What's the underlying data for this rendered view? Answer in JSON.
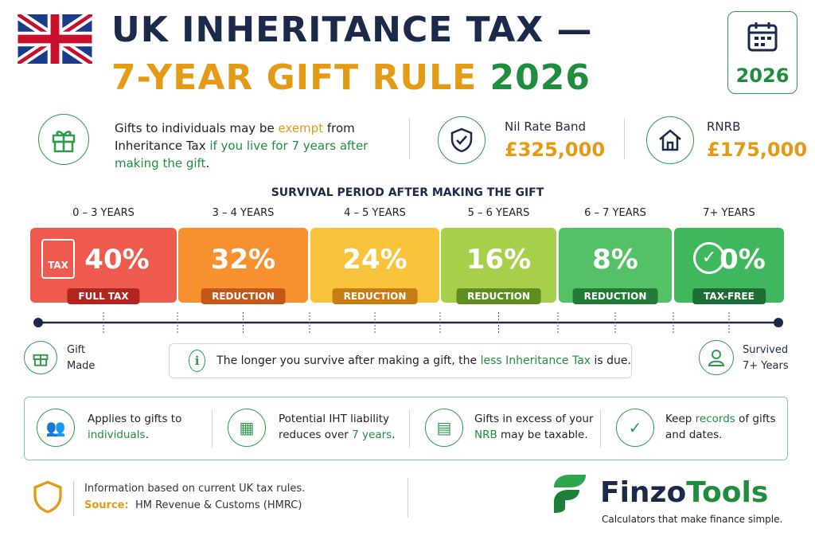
{
  "header": {
    "title_line1": "UK INHERITANCE TAX —",
    "title_line2_part1": "7-YEAR GIFT RULE",
    "title_line2_part2": "2026",
    "badge_year": "2026"
  },
  "intro": {
    "segments": [
      "Gifts to individuals may be ",
      "exempt",
      " from Inheritance Tax ",
      "if you live for 7 years after making the gift",
      "."
    ]
  },
  "nil_rate_band": {
    "label": "Nil Rate Band",
    "value": "£325,000"
  },
  "rnrb": {
    "label": "RNRB",
    "value": "£175,000"
  },
  "timeline": {
    "heading": "SURVIVAL PERIOD AFTER MAKING THE GIFT",
    "icon_text": "TAX",
    "periods": [
      {
        "label": "0 – 3 YEARS",
        "rate": "40%",
        "tag": "FULL TAX"
      },
      {
        "label": "3 – 4 YEARS",
        "rate": "32%",
        "tag": "REDUCTION"
      },
      {
        "label": "4 – 5 YEARS",
        "rate": "24%",
        "tag": "REDUCTION"
      },
      {
        "label": "5 – 6 YEARS",
        "rate": "16%",
        "tag": "REDUCTION"
      },
      {
        "label": "6 – 7 YEARS",
        "rate": "8%",
        "tag": "REDUCTION"
      },
      {
        "label": "7+ YEARS",
        "rate": "0%",
        "tag": "TAX-FREE"
      }
    ],
    "start": [
      "Gift",
      "Made"
    ],
    "end": [
      "Survived",
      "7+ Years"
    ],
    "note": [
      "The longer you survive after making a gift, the ",
      "less Inheritance Tax",
      " is due."
    ]
  },
  "facts": [
    [
      "Applies to gifts to ",
      "individuals",
      "."
    ],
    [
      "Potential IHT liability reduces over ",
      "7 years",
      "."
    ],
    [
      "Gifts in excess of your ",
      "NRB",
      " may be taxable."
    ],
    [
      "Keep ",
      "records",
      " of gifts and dates."
    ]
  ],
  "footer": {
    "info": "Information based on current UK tax rules.",
    "source_label": "Source:",
    "source": "HM Revenue & Customs (HMRC)"
  },
  "brand": {
    "name_part1": "Finzo",
    "name_part2": "Tools",
    "tagline": "Calculators that make finance simple."
  }
}
